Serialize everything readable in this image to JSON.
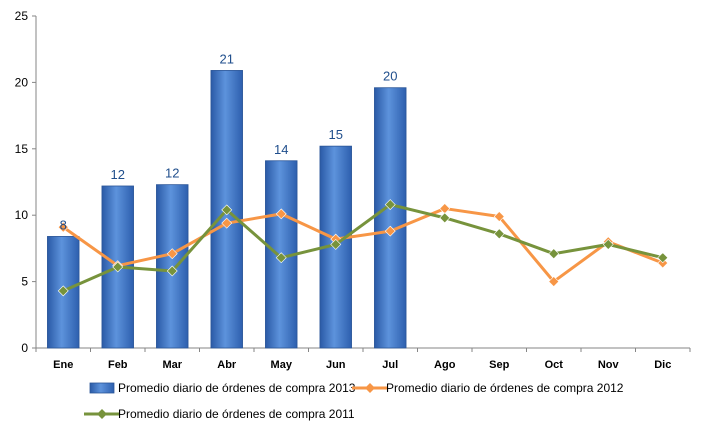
{
  "chart_data": {
    "type": "bar",
    "categories": [
      "Ene",
      "Feb",
      "Mar",
      "Abr",
      "May",
      "Jun",
      "Jul",
      "Ago",
      "Sep",
      "Oct",
      "Nov",
      "Dic"
    ],
    "ylim": [
      0,
      25
    ],
    "yticks": [
      0,
      5,
      10,
      15,
      20,
      25
    ],
    "grid": false,
    "legend_position": "bottom",
    "series": [
      {
        "name": "Promedio diario de órdenes de compra 2013",
        "type": "bar",
        "color": "#3f78c6",
        "values": [
          8.4,
          12.2,
          12.3,
          20.9,
          14.1,
          15.2,
          19.6,
          null,
          null,
          null,
          null,
          null
        ],
        "labels": [
          "8",
          "12",
          "12",
          "21",
          "14",
          "15",
          "20",
          "",
          "",
          "",
          "",
          ""
        ]
      },
      {
        "name": "Promedio diario de órdenes de compra 2012",
        "type": "line",
        "color": "#f79646",
        "values": [
          9.1,
          6.2,
          7.1,
          9.4,
          10.1,
          8.2,
          8.8,
          10.5,
          9.9,
          5.0,
          8.0,
          6.4
        ]
      },
      {
        "name": "Promedio diario de órdenes de compra 2011",
        "type": "line",
        "color": "#77933c",
        "values": [
          4.3,
          6.1,
          5.8,
          10.4,
          6.8,
          7.8,
          10.8,
          9.8,
          8.6,
          7.1,
          7.8,
          6.8
        ]
      }
    ]
  }
}
